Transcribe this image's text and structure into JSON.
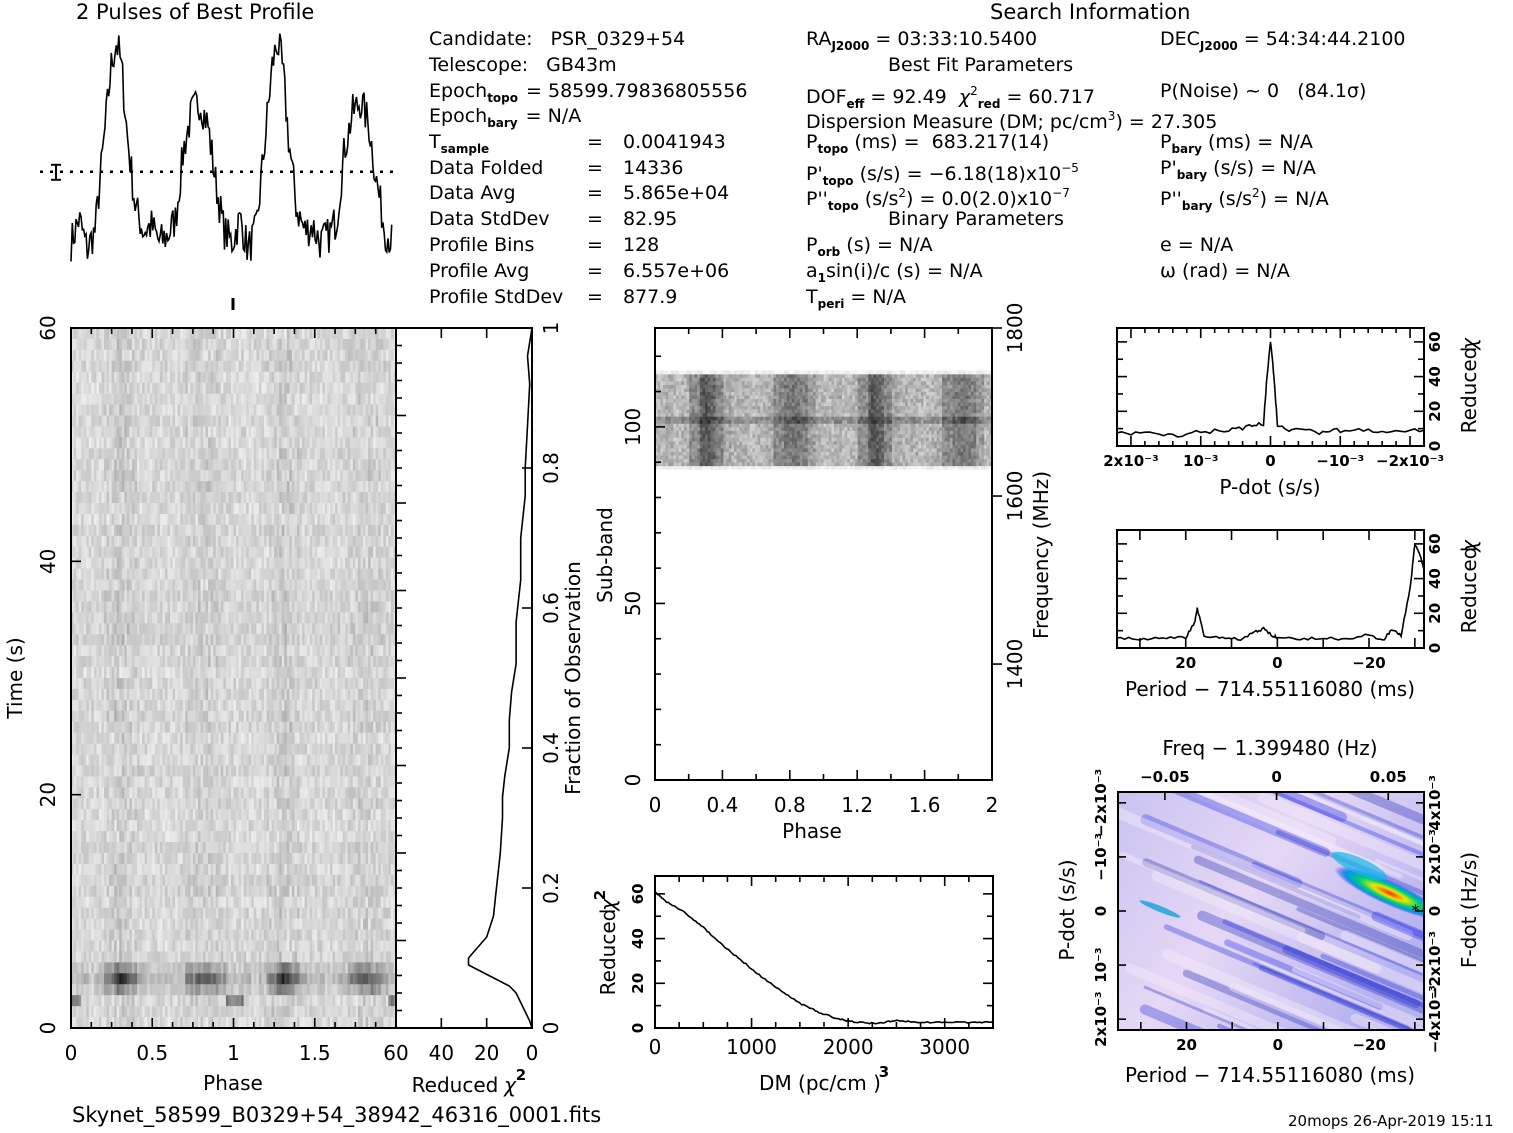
{
  "header": {
    "profile_title": "2 Pulses of Best Profile",
    "search_title": "Search Information",
    "best_fit_title": "Best Fit Parameters",
    "binary_title": "Binary Parameters"
  },
  "info_left": [
    {
      "label": "Candidate:",
      "sub": "",
      "value": "PSR_0329+54"
    },
    {
      "label": "Telescope:",
      "sub": "",
      "value": "GB43m"
    },
    {
      "label": "Epoch",
      "sub": "topo",
      "value": "= 58599.79836805556"
    },
    {
      "label": "Epoch",
      "sub": "bary",
      "value": "= N/A"
    },
    {
      "label": "T",
      "sub": "sample",
      "value": "0.0041943"
    },
    {
      "label": "Data Folded",
      "sub": "",
      "value": "14336"
    },
    {
      "label": "Data Avg",
      "sub": "",
      "value": "5.865e+04"
    },
    {
      "label": "Data StdDev",
      "sub": "",
      "value": "82.95"
    },
    {
      "label": "Profile Bins",
      "sub": "",
      "value": "128"
    },
    {
      "label": "Profile Avg",
      "sub": "",
      "value": "6.557e+06"
    },
    {
      "label": "Profile StdDev",
      "sub": "",
      "value": "877.9"
    }
  ],
  "search_info": {
    "ra": {
      "label": "RA",
      "sub": "J2000",
      "value": "= 03:33:10.5400"
    },
    "dec": {
      "label": "DEC",
      "sub": "J2000",
      "value": "= 54:34:44.2100"
    },
    "dof": {
      "label": "DOF",
      "sub": "eff",
      "value": "= 92.49"
    },
    "chi2": {
      "label": "χ",
      "sup": "2",
      "sub": "red",
      "value": "= 60.717"
    },
    "pnoise": "P(Noise) ~ 0",
    "sigma": "(84.1σ)",
    "dm_label": "Dispersion Measure (DM; pc/cm",
    "dm_sup": "3",
    "dm_value": ") = 27.305",
    "ptopo": {
      "label": "P",
      "sub": "topo",
      "unit": "(ms) =",
      "value": "683.217(14)"
    },
    "pbary": {
      "label": "P",
      "sub": "bary",
      "unit": "(ms) =",
      "value": "N/A"
    },
    "pdtopo": {
      "label": "P'",
      "sub": "topo",
      "unit": "(s/s) =",
      "value": "−6.18(18)x10",
      "exp": "−5"
    },
    "pdbary": {
      "label": "P'",
      "sub": "bary",
      "unit": "(s/s) =",
      "value": "N/A"
    },
    "pddtopo": {
      "label": "P''",
      "sub": "topo",
      "unit": "(s/s",
      "unit_sup": "2",
      "unit_end": ") =",
      "value": "0.0(2.0)x10",
      "exp": "−7"
    },
    "pddbary": {
      "label": "P''",
      "sub": "bary",
      "unit": "(s/s",
      "unit_sup": "2",
      "unit_end": ") =",
      "value": "N/A"
    },
    "porb": {
      "label": "P",
      "sub": "orb",
      "value": "(s) = N/A"
    },
    "asini": {
      "label": "a",
      "sub": "1",
      "value": "sin(i)/c (s) = N/A"
    },
    "tperi": {
      "label": "T",
      "sub": "peri",
      "value": "= N/A"
    },
    "ecc": "e = N/A",
    "omega": "ω (rad) = N/A"
  },
  "footer": {
    "filename": "Skynet_58599_B0329+54_38942_46316_0001.fits",
    "stamp": "20mops 26-Apr-2019 15:11"
  },
  "chart_data": [
    {
      "id": "profile",
      "type": "line",
      "title": "2 Pulses of Best Profile",
      "xlabel": "",
      "ylabel": "",
      "description": "Pulse profile repeated twice; main peak at phase ~0.3, secondary peak at ~0.8",
      "x": [
        0.0,
        0.05,
        0.1,
        0.15,
        0.2,
        0.25,
        0.28,
        0.3,
        0.32,
        0.35,
        0.4,
        0.45,
        0.5,
        0.55,
        0.6,
        0.65,
        0.7,
        0.75,
        0.8,
        0.85,
        0.9,
        0.95,
        1.0
      ],
      "y": [
        0.15,
        0.25,
        0.12,
        0.2,
        0.55,
        0.9,
        1.0,
        0.95,
        0.85,
        0.6,
        0.3,
        0.2,
        0.22,
        0.15,
        0.18,
        0.25,
        0.55,
        0.7,
        0.75,
        0.65,
        0.4,
        0.2,
        0.15
      ],
      "mean_line": 0.45
    },
    {
      "id": "time-phase",
      "type": "heatmap",
      "xlabel": "Phase",
      "ylabel": "Time (s)",
      "xticks": [
        "0",
        "0.5",
        "1",
        "1.5"
      ],
      "xlim": [
        0,
        2
      ],
      "yticks": [
        "0",
        "20",
        "40",
        "60"
      ],
      "ylim": [
        0,
        60
      ]
    },
    {
      "id": "chi2-vs-time",
      "type": "line",
      "xlabel": "Reduced χ2",
      "ylabel": "Fraction of Observation",
      "xticks": [
        "60",
        "40",
        "20",
        "0"
      ],
      "xlim": [
        60,
        0
      ],
      "yticks": [
        "0",
        "0.2",
        "0.4",
        "0.6",
        "0.8",
        "1"
      ],
      "ylim": [
        0,
        1
      ],
      "x": [
        0,
        1,
        4,
        7,
        10,
        16,
        28,
        28,
        20,
        17,
        16,
        15,
        14,
        13,
        13,
        12,
        10,
        10,
        9,
        7,
        7,
        5,
        5,
        3,
        3,
        2,
        1,
        2,
        0
      ],
      "y": [
        0,
        0.01,
        0.03,
        0.05,
        0.06,
        0.07,
        0.09,
        0.1,
        0.13,
        0.16,
        0.19,
        0.22,
        0.25,
        0.3,
        0.33,
        0.36,
        0.4,
        0.44,
        0.48,
        0.52,
        0.58,
        0.64,
        0.7,
        0.76,
        0.8,
        0.86,
        0.92,
        0.96,
        1.0
      ]
    },
    {
      "id": "subband-phase",
      "type": "heatmap",
      "xlabel": "Phase",
      "ylabel": "Sub-band",
      "y2label": "Frequency (MHz)",
      "xticks": [
        "0",
        "0.4",
        "0.8",
        "1.2",
        "1.6",
        "2"
      ],
      "xlim": [
        0,
        2
      ],
      "yticks": [
        "0",
        "50",
        "100"
      ],
      "ylim": [
        0,
        128
      ],
      "y2ticks": [
        "1400",
        "1600",
        "1800"
      ],
      "data_band": [
        88,
        116
      ]
    },
    {
      "id": "chi2-vs-dm",
      "type": "line",
      "xlabel": "DM (pc/cm3)",
      "ylabel": "Reduced χ2",
      "xticks": [
        "0",
        "1000",
        "2000",
        "3000"
      ],
      "xlim": [
        0,
        3500
      ],
      "yticks": [
        "0",
        "20",
        "40",
        "60"
      ],
      "ylim": [
        0,
        68
      ],
      "x": [
        0,
        100,
        300,
        500,
        700,
        900,
        1100,
        1300,
        1500,
        1700,
        1900,
        2100,
        2300,
        2500,
        2700,
        3000,
        3300,
        3500
      ],
      "y": [
        61,
        57,
        52,
        45,
        37,
        30,
        23,
        17,
        11,
        7,
        4,
        2.5,
        2,
        3.5,
        2.5,
        2.5,
        2.5,
        2.5
      ]
    },
    {
      "id": "chi2-vs-pdot",
      "type": "line",
      "xlabel": "P-dot (s/s)",
      "ylabel": "Reduced χ2",
      "xticks": [
        "2x10-3",
        "10-3",
        "0",
        "-10-3",
        "-2x10-3"
      ],
      "xlim": [
        0.0022,
        -0.0022
      ],
      "yticks": [
        "0",
        "20",
        "40",
        "60"
      ],
      "ylim": [
        0,
        68
      ],
      "x": [
        0.0022,
        0.0018,
        0.0014,
        0.001,
        0.0006,
        0.0003,
        0.0001,
        5e-05,
        0,
        -5e-05,
        -0.0001,
        -0.0003,
        -0.0007,
        -0.001,
        -0.0014,
        -0.0018,
        -0.0022
      ],
      "y": [
        7,
        8,
        6,
        8,
        9,
        11,
        13,
        40,
        61,
        40,
        12,
        9,
        8,
        9,
        9,
        8,
        9
      ]
    },
    {
      "id": "chi2-vs-period",
      "type": "line",
      "xlabel": "Period − 714.55116080 (ms)",
      "ylabel": "Reduced χ2",
      "xticks": [
        "20",
        "0",
        "−20"
      ],
      "xlim": [
        35,
        -32
      ],
      "yticks": [
        "0",
        "20",
        "40",
        "60"
      ],
      "ylim": [
        0,
        68
      ],
      "x": [
        35,
        30,
        25,
        20,
        18,
        17.5,
        16,
        12,
        8,
        5,
        3,
        1,
        0,
        -5,
        -10,
        -15,
        -20,
        -23,
        -25,
        -27,
        -29,
        -30,
        -31,
        -32
      ],
      "y": [
        6,
        5,
        6,
        6,
        15,
        23,
        7,
        6,
        5,
        9,
        11,
        7,
        6,
        5,
        6,
        5,
        8,
        4,
        11,
        7,
        35,
        60,
        55,
        45
      ]
    },
    {
      "id": "period-pdot",
      "type": "heatmap",
      "title": "Freq − 1.399480 (Hz)",
      "xlabel": "Period − 714.55116080 (ms)",
      "ylabel": "P-dot (s/s)",
      "y2label": "F-dot (Hz/s)",
      "xticks": [
        "20",
        "0",
        "−20"
      ],
      "xlim": [
        35,
        -32
      ],
      "x2ticks": [
        "−0.05",
        "0",
        "0.05"
      ],
      "yticks": [
        "2x10-3",
        "10-3",
        "0",
        "−10-3",
        "−2x10-3"
      ],
      "y2ticks": [
        "−4x10-3",
        "−2x10-3",
        "0",
        "2x10-3",
        "4x10-3"
      ],
      "peak": {
        "period": -31,
        "pdot": 0.0
      }
    }
  ]
}
